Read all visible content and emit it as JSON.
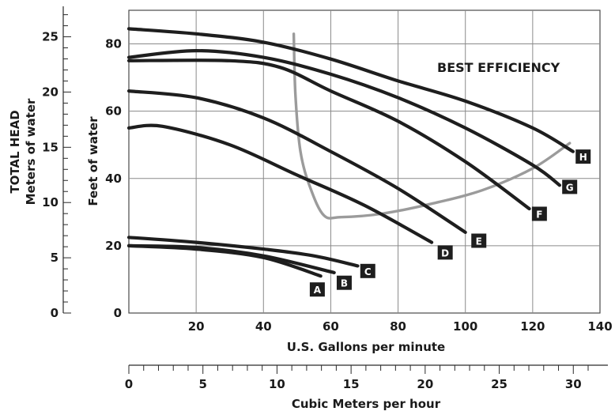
{
  "chart_data": {
    "type": "line",
    "annotation": "BEST EFFICIENCY",
    "x_axis": {
      "label": "U.S. Gallons per minute",
      "lim": [
        0,
        140
      ],
      "ticks": [
        "20",
        "40",
        "60",
        "80",
        "100",
        "120",
        "140"
      ]
    },
    "x2_axis": {
      "label": "Cubic Meters per hour",
      "lim": [
        0,
        31.8
      ],
      "ticks": [
        "0",
        "5",
        "10",
        "15",
        "20",
        "25",
        "30"
      ]
    },
    "y_axis": {
      "label": "Feet of water",
      "lim": [
        0,
        90
      ],
      "ticks": [
        "0",
        "20",
        "40",
        "60",
        "80"
      ]
    },
    "y2_axis": {
      "label_line1": "TOTAL HEAD",
      "label_line2": "Meters of water",
      "lim": [
        0,
        27.4
      ],
      "ticks": [
        "0",
        "5",
        "10",
        "15",
        "20",
        "25"
      ]
    },
    "grid": true,
    "series": [
      {
        "name": "A",
        "color": "#1e1e1e",
        "points": [
          [
            0,
            20
          ],
          [
            20,
            19
          ],
          [
            40,
            16.5
          ],
          [
            57,
            11
          ]
        ],
        "label_at": [
          56,
          7
        ]
      },
      {
        "name": "B",
        "color": "#1e1e1e",
        "points": [
          [
            0,
            20
          ],
          [
            20,
            19.5
          ],
          [
            40,
            17
          ],
          [
            61,
            12
          ]
        ],
        "label_at": [
          64,
          9
        ]
      },
      {
        "name": "C",
        "color": "#1e1e1e",
        "points": [
          [
            0,
            22.5
          ],
          [
            20,
            21
          ],
          [
            40,
            19
          ],
          [
            55,
            17
          ],
          [
            68,
            14
          ]
        ],
        "label_at": [
          71,
          12.5
        ]
      },
      {
        "name": "D",
        "color": "#1e1e1e",
        "points": [
          [
            0,
            55
          ],
          [
            10,
            55.5
          ],
          [
            30,
            50
          ],
          [
            50,
            41
          ],
          [
            70,
            32
          ],
          [
            90,
            21
          ]
        ],
        "label_at": [
          94,
          18
        ]
      },
      {
        "name": "E",
        "color": "#1e1e1e",
        "points": [
          [
            0,
            66
          ],
          [
            20,
            64
          ],
          [
            40,
            58
          ],
          [
            60,
            48
          ],
          [
            80,
            37
          ],
          [
            100,
            24
          ]
        ],
        "label_at": [
          104,
          21.5
        ]
      },
      {
        "name": "F",
        "color": "#1e1e1e",
        "points": [
          [
            0,
            75
          ],
          [
            30,
            75
          ],
          [
            45,
            73
          ],
          [
            60,
            66
          ],
          [
            80,
            57
          ],
          [
            100,
            45
          ],
          [
            119,
            31
          ]
        ],
        "label_at": [
          122,
          29.5
        ]
      },
      {
        "name": "G",
        "color": "#1e1e1e",
        "points": [
          [
            0,
            76
          ],
          [
            20,
            78
          ],
          [
            40,
            76
          ],
          [
            60,
            71
          ],
          [
            80,
            64
          ],
          [
            100,
            55
          ],
          [
            120,
            44
          ],
          [
            128,
            38
          ]
        ],
        "label_at": [
          131,
          37.5
        ]
      },
      {
        "name": "H",
        "color": "#1e1e1e",
        "points": [
          [
            0,
            84.5
          ],
          [
            20,
            83
          ],
          [
            40,
            80.5
          ],
          [
            60,
            75.5
          ],
          [
            80,
            69
          ],
          [
            100,
            63
          ],
          [
            120,
            55
          ],
          [
            132,
            48
          ]
        ],
        "label_at": [
          135,
          46.5
        ]
      }
    ],
    "efficiency_curve": {
      "color": "#9b9b9b",
      "points": [
        [
          49,
          83
        ],
        [
          49.5,
          65
        ],
        [
          51,
          48
        ],
        [
          54,
          37
        ],
        [
          58,
          29
        ],
        [
          63,
          28.5
        ],
        [
          75,
          29.5
        ],
        [
          90,
          32.5
        ],
        [
          105,
          36.5
        ],
        [
          120,
          43
        ],
        [
          131,
          50.5
        ]
      ]
    }
  }
}
